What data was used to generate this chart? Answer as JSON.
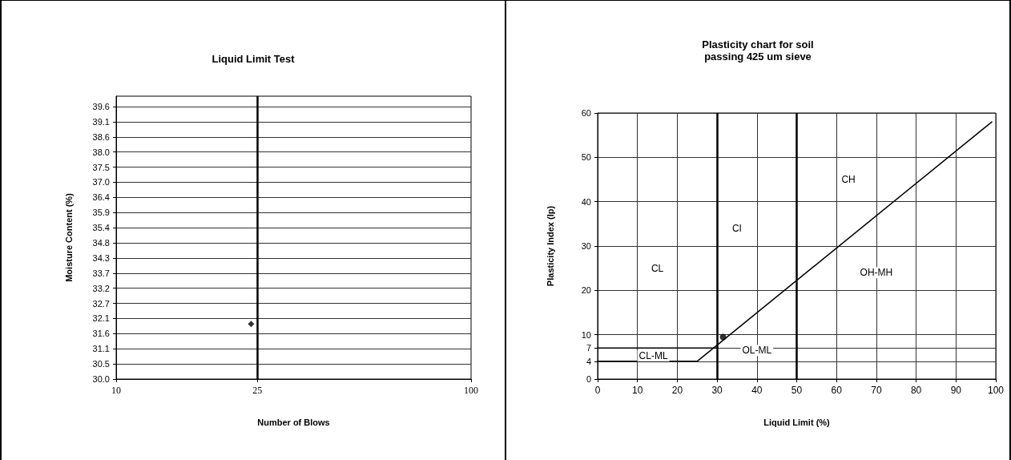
{
  "chart_data": [
    {
      "type": "scatter",
      "title": "Liquid Limit Test",
      "xlabel": "Number of Blows",
      "ylabel": "Moisture Content (%)",
      "log": "x",
      "x": [
        24
      ],
      "values": [
        31.95
      ],
      "color": "#000000",
      "marker": "diamond",
      "xlim": [
        10,
        100
      ],
      "xticks": [
        10,
        25,
        100
      ],
      "ylim": [
        30,
        40
      ],
      "yticks": [
        {
          "value": 30,
          "label": "30.0"
        },
        {
          "value": 30.535,
          "label": "30.5"
        },
        {
          "value": 31.07,
          "label": "31.1"
        },
        {
          "value": 31.605,
          "label": "31.6"
        },
        {
          "value": 32.14,
          "label": "32.1"
        },
        {
          "value": 32.675,
          "label": "32.7"
        },
        {
          "value": 33.21,
          "label": "33.2"
        },
        {
          "value": 33.745,
          "label": "33.7"
        },
        {
          "value": 34.28,
          "label": "34.3"
        },
        {
          "value": 34.815,
          "label": "34.8"
        },
        {
          "value": 35.35,
          "label": "35.4"
        },
        {
          "value": 35.885,
          "label": "35.9"
        },
        {
          "value": 36.42,
          "label": "36.4"
        },
        {
          "value": 36.955,
          "label": "37.0"
        },
        {
          "value": 37.49,
          "label": "37.5"
        },
        {
          "value": 38.025,
          "label": "38.0"
        },
        {
          "value": 38.56,
          "label": "38.6"
        },
        {
          "value": 39.095,
          "label": "39.1"
        },
        {
          "value": 39.63,
          "label": "39.6"
        }
      ],
      "grid": "y",
      "ref_lines": [
        {
          "axis": "x",
          "value": 25,
          "color": "#000000"
        }
      ]
    },
    {
      "type": "scatter",
      "title": "Plasticity chart for soil\npassing 425 um sieve",
      "xlabel": "Liquid Limit (%)",
      "ylabel": "Plasticity Index (Ip)",
      "xlim": [
        0,
        100
      ],
      "xticks": [
        0,
        10,
        20,
        30,
        40,
        50,
        60,
        70,
        80,
        90,
        100
      ],
      "ylim": [
        0,
        60
      ],
      "yticks": [
        0,
        4,
        7,
        10,
        20,
        30,
        40,
        50,
        60
      ],
      "grid": true,
      "series": [
        {
          "type": "line",
          "x": [
            0,
            25,
            99
          ],
          "values": [
            4,
            4,
            58
          ],
          "color": "#000000",
          "marker": "none"
        },
        {
          "type": "line",
          "x": [
            0,
            30
          ],
          "values": [
            7,
            7
          ],
          "color": "#000000",
          "marker": "none"
        },
        {
          "x": [
            31.5
          ],
          "values": [
            9.5
          ],
          "color": "#000000",
          "marker": "circle"
        }
      ],
      "ref_lines": [
        {
          "axis": "x",
          "value": 30,
          "color": "#000000"
        },
        {
          "axis": "x",
          "value": 50,
          "color": "#000000"
        }
      ],
      "annotations": [
        "CL",
        "CI",
        "CH",
        "OH-MH",
        "OL-ML",
        "CL-ML"
      ]
    }
  ]
}
